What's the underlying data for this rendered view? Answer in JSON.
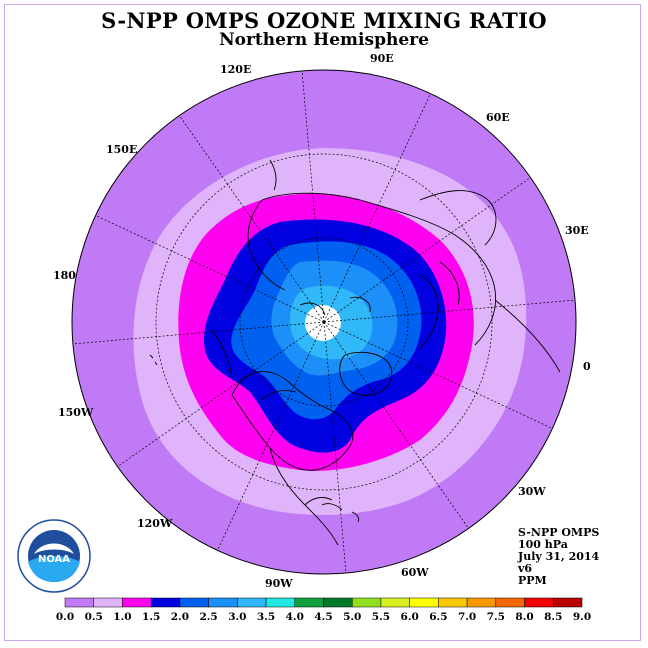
{
  "header": {
    "title": "S-NPP OMPS OZONE MIXING RATIO",
    "subtitle": "Northern Hemisphere"
  },
  "map": {
    "projection": "north-polar-stereographic",
    "longitude_labels": {
      "lon_90E": "90E",
      "lon_60E": "60E",
      "lon_30E": "30E",
      "lon_0": "0",
      "lon_30W": "30W",
      "lon_60W": "60W",
      "lon_90W": "90W",
      "lon_120W": "120W",
      "lon_150W": "150W",
      "lon_180": "180",
      "lon_150E": "150E",
      "lon_120E": "120E"
    },
    "latitude_circles_deg": [
      30,
      60
    ],
    "missing_data_polar_cap": true
  },
  "info_block": {
    "instrument": "S-NPP OMPS",
    "level": "100 hPa",
    "date": "July 31, 2014",
    "version": "v6",
    "units": "PPM"
  },
  "colorbar": {
    "tick_labels": [
      "0.0",
      "0.5",
      "1.0",
      "1.5",
      "2.0",
      "2.5",
      "3.0",
      "3.5",
      "4.0",
      "4.5",
      "5.0",
      "5.5",
      "6.0",
      "6.5",
      "7.0",
      "7.5",
      "8.0",
      "8.5",
      "9.0"
    ],
    "colors": [
      "#c07af5",
      "#e0b4fa",
      "#ff00f0",
      "#0000e0",
      "#0060f0",
      "#1c90f8",
      "#30b8f8",
      "#20e8e0",
      "#10a040",
      "#007828",
      "#90e020",
      "#d8f020",
      "#ffff00",
      "#f8c800",
      "#f89800",
      "#f86800",
      "#f00000",
      "#b80000",
      "#a06040"
    ]
  },
  "logo": {
    "text": "NOAA",
    "ring_text": "NATIONAL OCEANIC AND ATMOSPHERIC ADMINISTRATION · U.S. DEPARTMENT OF COMMERCE"
  }
}
